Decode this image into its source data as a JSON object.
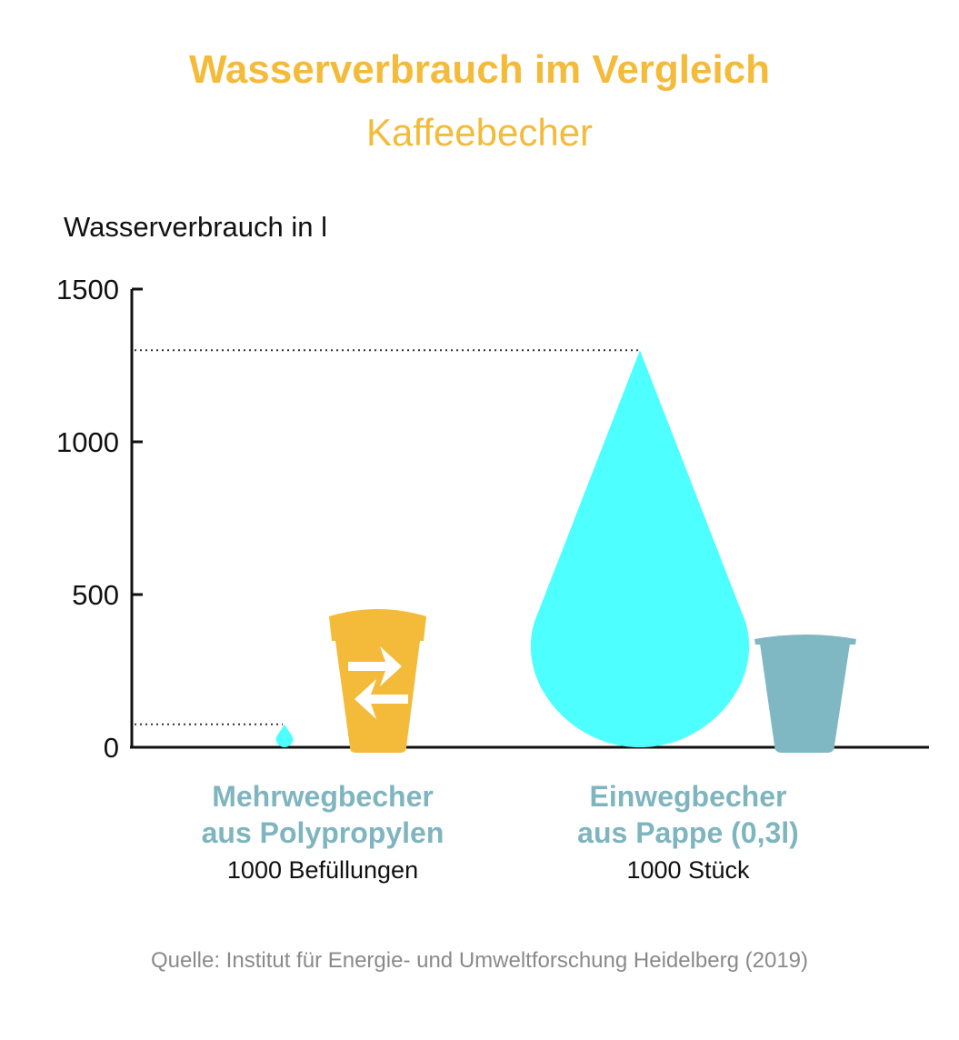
{
  "header": {
    "title": "Wasserverbrauch im Vergleich",
    "subtitle": "Kaffeebecher"
  },
  "chart_data": {
    "type": "bar",
    "title": "Wasserverbrauch im Vergleich",
    "subtitle": "Kaffeebecher",
    "ylabel": "Wasserverbrauch in l",
    "ylim": [
      0,
      1500
    ],
    "yticks": [
      "0",
      "500",
      "1000",
      "1500"
    ],
    "categories": [
      {
        "line1": "Mehrwegbecher",
        "line2": "aus Polypropylen",
        "note": "1000 Befüllungen"
      },
      {
        "line1": "Einwegbecher",
        "line2": "aus Pappe (0,3l)",
        "note": "1000 Stück"
      }
    ],
    "values": [
      75,
      1300
    ],
    "grid": false,
    "colors": {
      "water": "#4dffff",
      "reusable_cup": "#f4bb3a",
      "paper_cup": "#7fb8c2",
      "title": "#f4bb3a",
      "category_label": "#7fb5bf"
    },
    "icons": [
      "water-drop-icon",
      "reusable-cup-icon",
      "recycle-arrows-icon",
      "paper-cup-icon"
    ]
  },
  "footer": {
    "source": "Quelle: Institut für Energie- und Umweltforschung Heidelberg (2019)"
  }
}
